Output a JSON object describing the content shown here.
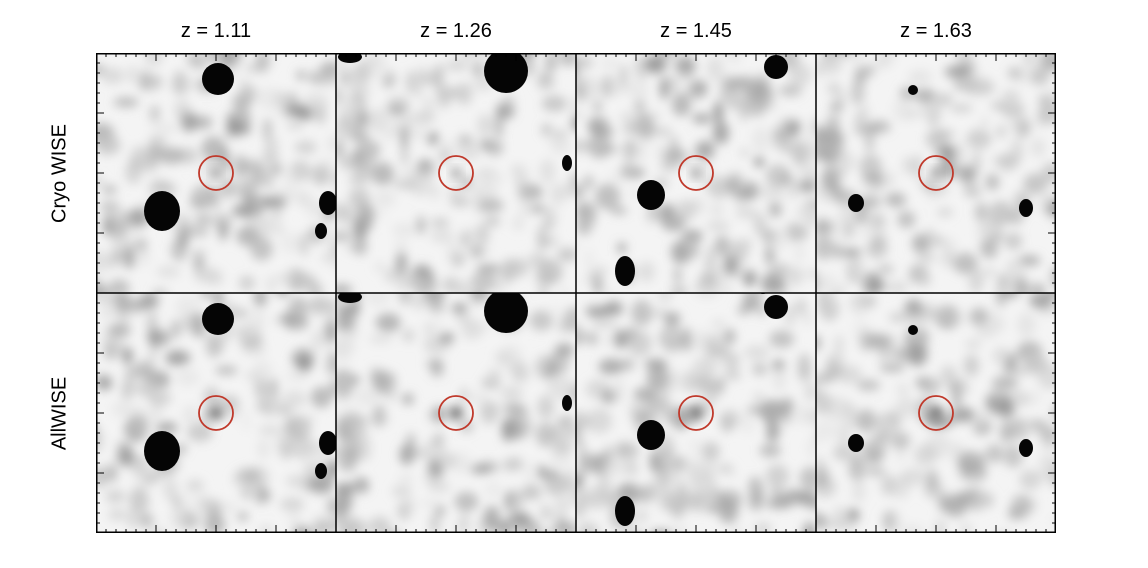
{
  "figure": {
    "columns": [
      {
        "title": "z = 1.11"
      },
      {
        "title": "z = 1.26"
      },
      {
        "title": "z = 1.45"
      },
      {
        "title": "z = 1.63"
      }
    ],
    "rows": [
      {
        "label": "Cryo WISE"
      },
      {
        "label": "AllWISE"
      }
    ],
    "circle_color": "#c0392b",
    "background_color": "#ffffff",
    "source_color": "#000000"
  }
}
